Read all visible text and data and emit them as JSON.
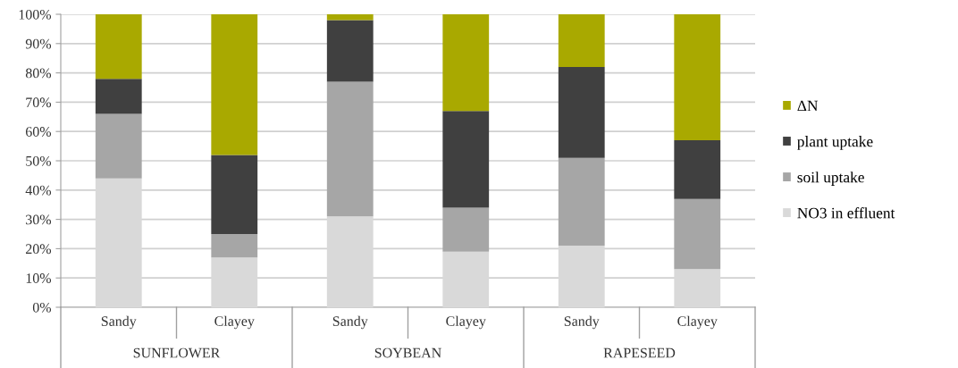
{
  "chart_data": {
    "type": "bar",
    "stacked": true,
    "categories": [
      "Sandy",
      "Clayey",
      "Sandy",
      "Clayey",
      "Sandy",
      "Clayey"
    ],
    "series": [
      {
        "name": "NO3 in effluent",
        "color": "#d9d9d9",
        "values": [
          44,
          17,
          31,
          19,
          21,
          13
        ]
      },
      {
        "name": "soil uptake",
        "color": "#a6a6a6",
        "values": [
          22,
          8,
          46,
          15,
          30,
          24
        ]
      },
      {
        "name": "plant uptake",
        "color": "#404040",
        "values": [
          12,
          27,
          21,
          33,
          31,
          20
        ]
      },
      {
        "name": "ΔN",
        "color": "#a9a900",
        "values": [
          22,
          48,
          2,
          33,
          18,
          43
        ]
      }
    ],
    "annotations": [
      "SUNFLOWER",
      "SOYBEAN",
      "RAPESEED"
    ],
    "ylim": [
      0,
      100
    ],
    "yticks": [
      {
        "value": 0,
        "label": "0%"
      },
      {
        "value": 10,
        "label": "10%"
      },
      {
        "value": 20,
        "label": "20%"
      },
      {
        "value": 30,
        "label": "30%"
      },
      {
        "value": 40,
        "label": "40%"
      },
      {
        "value": 50,
        "label": "50%"
      },
      {
        "value": 60,
        "label": "60%"
      },
      {
        "value": 70,
        "label": "70%"
      },
      {
        "value": 80,
        "label": "80%"
      },
      {
        "value": 90,
        "label": "90%"
      },
      {
        "value": 100,
        "label": "100%"
      }
    ],
    "grid": "y",
    "legend": "right"
  }
}
